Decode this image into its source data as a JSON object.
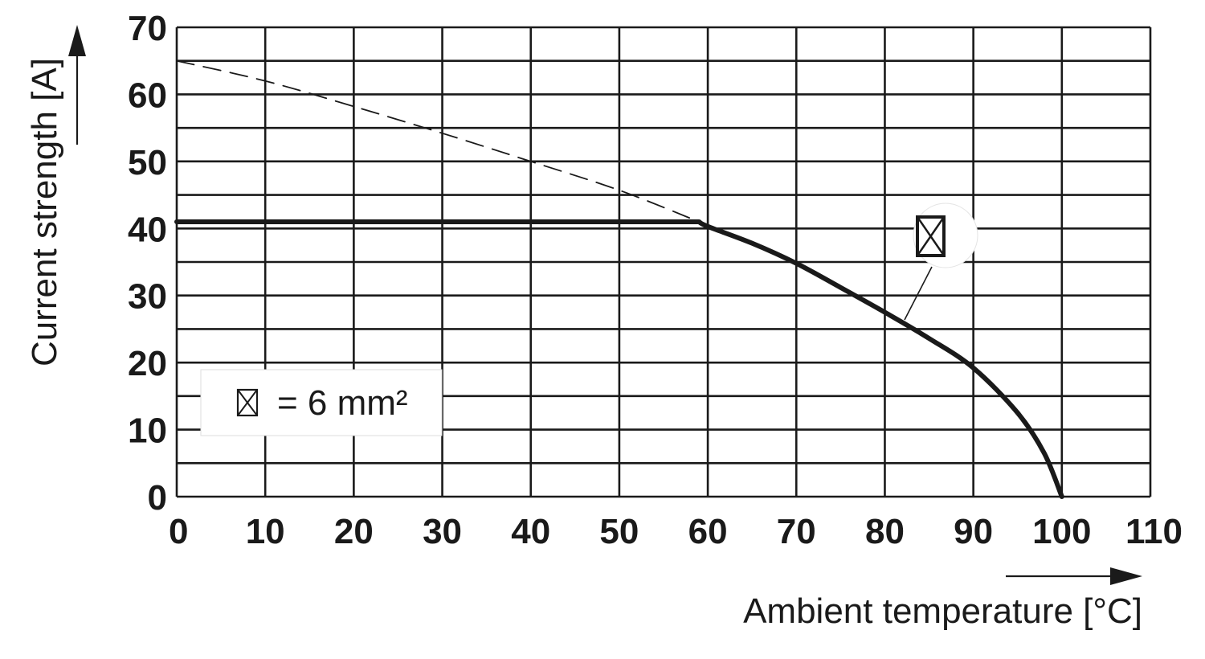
{
  "chart_data": {
    "type": "line",
    "xlabel": "Ambient temperature [°C]",
    "ylabel": "Current strength [A]",
    "xlim": [
      0,
      110
    ],
    "ylim": [
      0,
      70
    ],
    "x_ticks": [
      "0",
      "10",
      "20",
      "30",
      "40",
      "50",
      "60",
      "70",
      "80",
      "90",
      "100",
      "110"
    ],
    "y_ticks": [
      "0",
      "10",
      "20",
      "30",
      "40",
      "50",
      "60",
      "70"
    ],
    "grid": true,
    "x_grid_step": 10,
    "y_grid_step": 5,
    "series": [
      {
        "style": "solid",
        "color": "#1a1a1a",
        "x": [
          0,
          59,
          60,
          65,
          70,
          75,
          80,
          85,
          90,
          95,
          98,
          100
        ],
        "y": [
          41,
          41,
          40.3,
          37.8,
          34.8,
          31.2,
          27.5,
          23.6,
          19.2,
          12.5,
          6.5,
          0
        ]
      },
      {
        "style": "dashed",
        "color": "#1a1a1a",
        "x": [
          0,
          10,
          20,
          30,
          40,
          50,
          59
        ],
        "y": [
          65,
          62,
          58.2,
          54.2,
          50,
          45.7,
          41
        ]
      }
    ],
    "legend": {
      "placement": "bottom-left",
      "symbol": "⊠",
      "text": "= 6 mm²"
    },
    "annotation": {
      "symbol": "⊠",
      "points_to_x": 83,
      "points_to_y": 26
    }
  }
}
